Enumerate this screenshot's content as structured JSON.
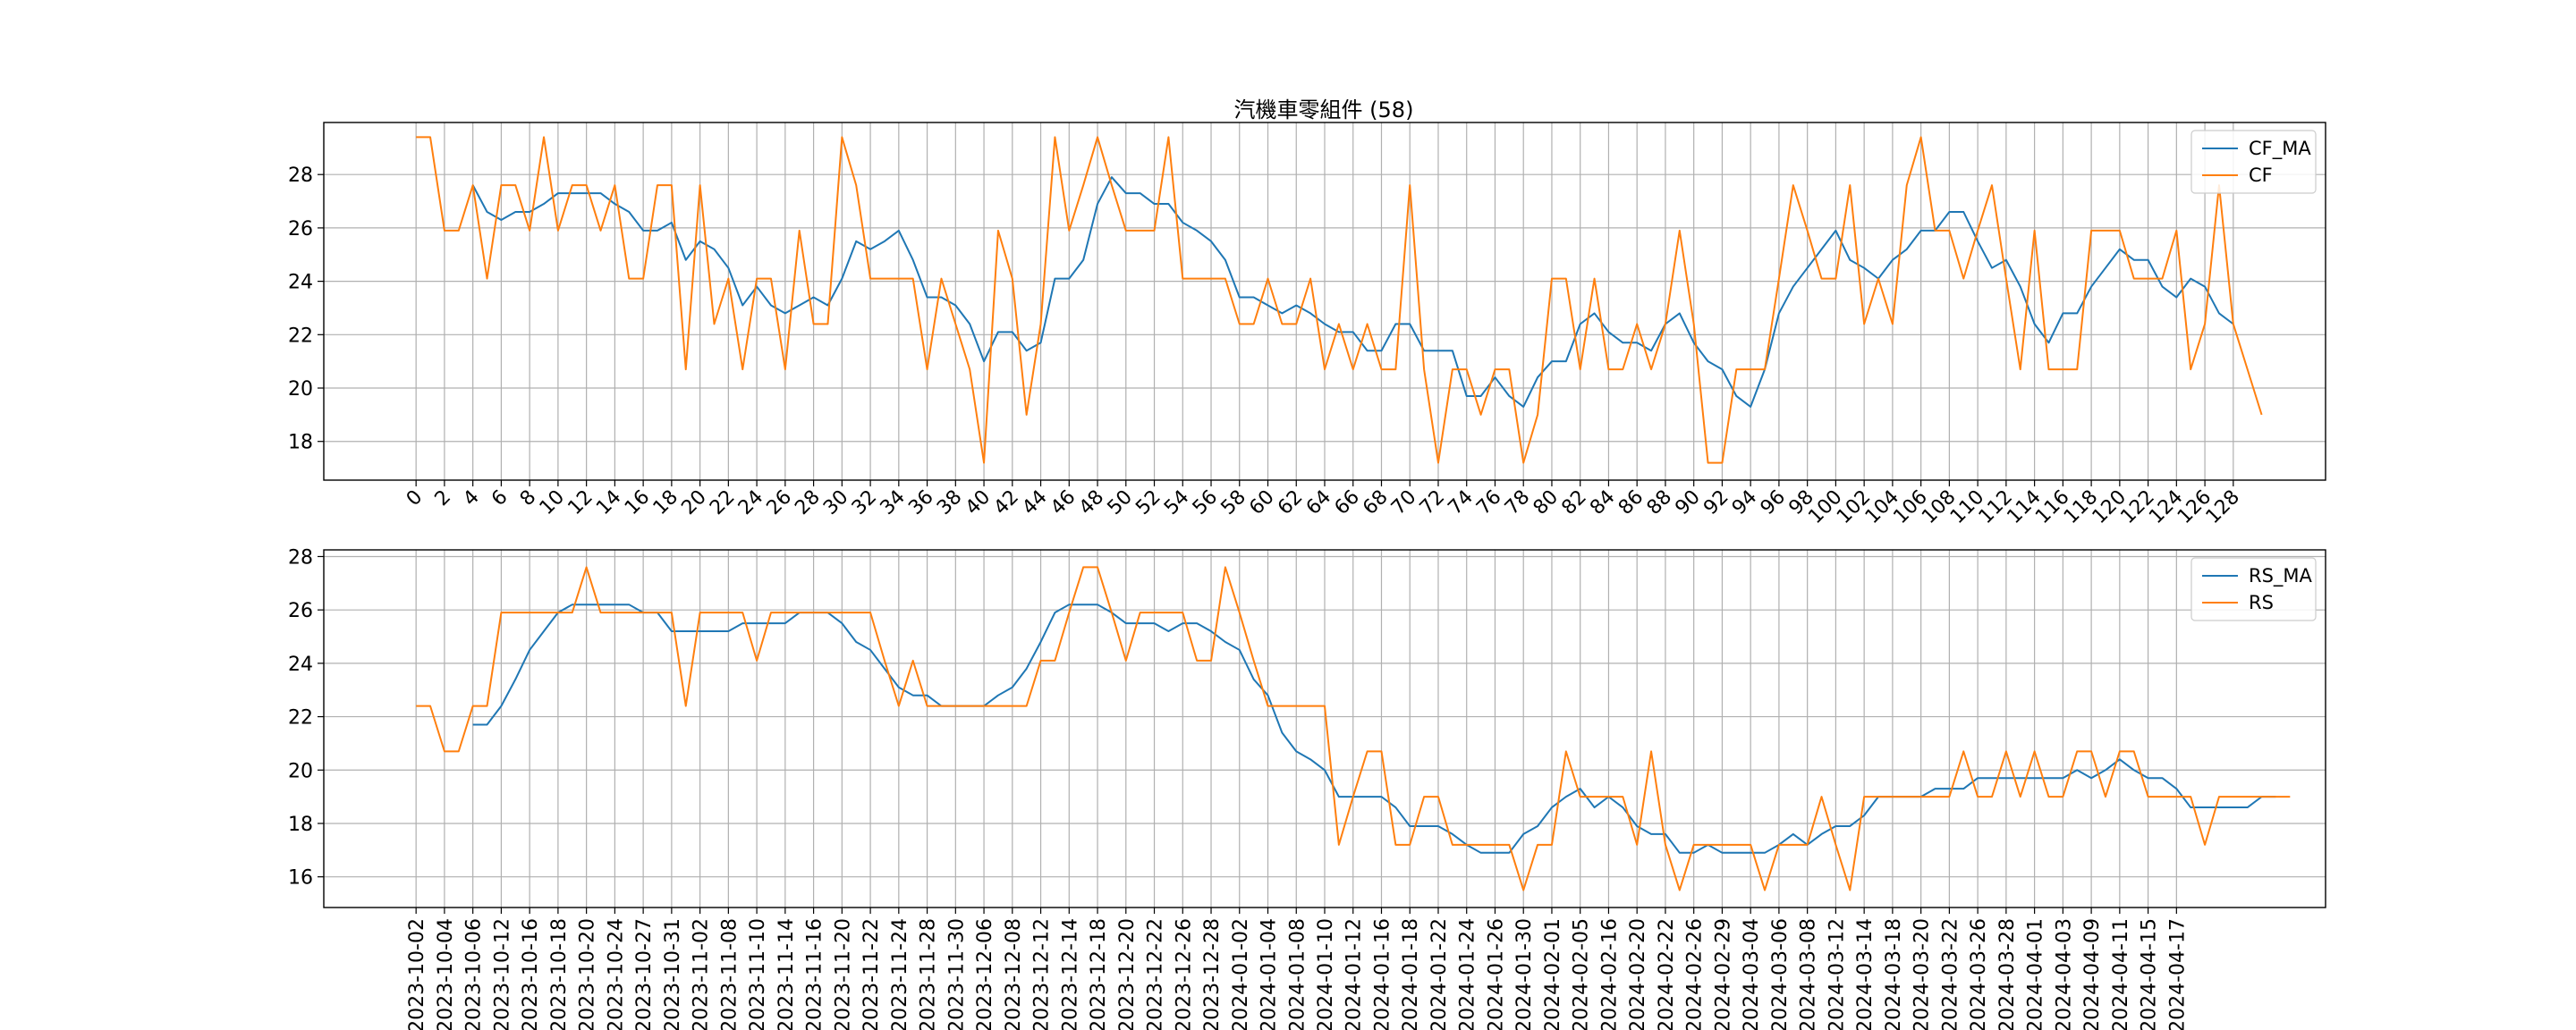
{
  "chart_data": [
    {
      "type": "line",
      "title": "汽機車零組件 (58)",
      "xlabel": "",
      "ylabel": "",
      "x_tick_labels": [
        "0",
        "2",
        "4",
        "6",
        "8",
        "10",
        "12",
        "14",
        "16",
        "18",
        "20",
        "22",
        "24",
        "26",
        "28",
        "30",
        "32",
        "34",
        "36",
        "38",
        "40",
        "42",
        "44",
        "46",
        "48",
        "50",
        "52",
        "54",
        "56",
        "58",
        "60",
        "62",
        "64",
        "66",
        "68",
        "70",
        "72",
        "74",
        "76",
        "78",
        "80",
        "82",
        "84",
        "86",
        "88",
        "90",
        "92",
        "94",
        "96",
        "98",
        "100",
        "102",
        "104",
        "106",
        "108",
        "110",
        "112",
        "114",
        "116",
        "118",
        "120",
        "122",
        "124",
        "126",
        "128"
      ],
      "y_ticks": [
        "18",
        "20",
        "22",
        "24",
        "26",
        "28"
      ],
      "xlim": [
        -6.5,
        134.5
      ],
      "ylim": [
        16.55,
        29.95
      ],
      "grid": true,
      "legend_position": "top-right",
      "series": [
        {
          "name": "CF_MA",
          "color": "#1f77b4",
          "x_start": 4,
          "values": [
            27.6,
            26.6,
            26.3,
            26.6,
            26.6,
            26.9,
            27.3,
            27.3,
            27.3,
            27.3,
            26.9,
            26.6,
            25.9,
            25.9,
            26.2,
            24.8,
            25.5,
            25.2,
            24.5,
            23.1,
            23.8,
            23.1,
            22.8,
            23.1,
            23.4,
            23.1,
            24.1,
            25.5,
            25.2,
            25.5,
            25.9,
            24.8,
            23.4,
            23.4,
            23.1,
            22.4,
            21.0,
            22.1,
            22.1,
            21.4,
            21.7,
            24.1,
            24.1,
            24.8,
            26.9,
            27.9,
            27.3,
            27.3,
            26.9,
            26.9,
            26.2,
            25.9,
            25.5,
            24.8,
            23.4,
            23.4,
            23.1,
            22.8,
            23.1,
            22.8,
            22.4,
            22.1,
            22.1,
            21.4,
            21.4,
            22.4,
            22.4,
            21.4,
            21.4,
            21.4,
            19.7,
            19.7,
            20.4,
            19.7,
            19.3,
            20.4,
            21.0,
            21.0,
            22.4,
            22.8,
            22.1,
            21.7,
            21.7,
            21.4,
            22.4,
            22.8,
            21.7,
            21.0,
            20.7,
            19.7,
            19.3,
            20.7,
            22.8,
            23.8,
            24.5,
            25.2,
            25.9,
            24.8,
            24.5,
            24.1,
            24.8,
            25.2,
            25.9,
            25.9,
            26.6,
            26.6,
            25.5,
            24.5,
            24.8,
            23.8,
            22.4,
            21.7,
            22.8,
            22.8,
            23.8,
            24.5,
            25.2,
            24.8,
            24.8,
            23.8,
            23.4,
            24.1,
            23.8,
            22.8,
            22.4
          ]
        },
        {
          "name": "CF",
          "color": "#ff7f0e",
          "x_start": 0,
          "values": [
            29.4,
            29.4,
            25.9,
            25.9,
            27.6,
            24.1,
            27.6,
            27.6,
            25.9,
            29.4,
            25.9,
            27.6,
            27.6,
            25.9,
            27.6,
            24.1,
            24.1,
            27.6,
            27.6,
            20.7,
            27.6,
            22.4,
            24.1,
            20.7,
            24.1,
            24.1,
            20.7,
            25.9,
            22.4,
            22.4,
            29.4,
            27.6,
            24.1,
            24.1,
            24.1,
            24.1,
            20.7,
            24.1,
            22.4,
            20.7,
            17.2,
            25.9,
            24.1,
            19.0,
            22.4,
            29.4,
            25.9,
            27.6,
            29.4,
            27.6,
            25.9,
            25.9,
            25.9,
            29.4,
            24.1,
            24.1,
            24.1,
            24.1,
            22.4,
            22.4,
            24.1,
            22.4,
            22.4,
            24.1,
            20.7,
            22.4,
            20.7,
            22.4,
            20.7,
            20.7,
            27.6,
            20.7,
            17.2,
            20.7,
            20.7,
            19.0,
            20.7,
            20.7,
            17.2,
            19.0,
            24.1,
            24.1,
            20.7,
            24.1,
            20.7,
            20.7,
            22.4,
            20.7,
            22.4,
            25.9,
            22.4,
            17.2,
            17.2,
            20.7,
            20.7,
            20.7,
            24.1,
            27.6,
            25.9,
            24.1,
            24.1,
            27.6,
            22.4,
            24.1,
            22.4,
            27.6,
            29.4,
            25.9,
            25.9,
            24.1,
            25.9,
            27.6,
            24.1,
            20.7,
            25.9,
            20.7,
            20.7,
            20.7,
            25.9,
            25.9,
            25.9,
            24.1,
            24.1,
            24.1,
            25.9,
            20.7,
            22.4,
            27.6,
            22.4,
            20.7,
            19.0
          ]
        }
      ]
    },
    {
      "type": "line",
      "title": "",
      "xlabel": "",
      "ylabel": "",
      "x_tick_labels": [
        "2023-10-02",
        "2023-10-04",
        "2023-10-06",
        "2023-10-12",
        "2023-10-16",
        "2023-10-18",
        "2023-10-20",
        "2023-10-24",
        "2023-10-27",
        "2023-10-31",
        "2023-11-02",
        "2023-11-08",
        "2023-11-10",
        "2023-11-14",
        "2023-11-16",
        "2023-11-20",
        "2023-11-22",
        "2023-11-24",
        "2023-11-28",
        "2023-11-30",
        "2023-12-06",
        "2023-12-08",
        "2023-12-12",
        "2023-12-14",
        "2023-12-18",
        "2023-12-20",
        "2023-12-22",
        "2023-12-26",
        "2023-12-28",
        "2024-01-02",
        "2024-01-04",
        "2024-01-08",
        "2024-01-10",
        "2024-01-12",
        "2024-01-16",
        "2024-01-18",
        "2024-01-22",
        "2024-01-24",
        "2024-01-26",
        "2024-01-30",
        "2024-02-01",
        "2024-02-05",
        "2024-02-16",
        "2024-02-20",
        "2024-02-22",
        "2024-02-26",
        "2024-02-29",
        "2024-03-04",
        "2024-03-06",
        "2024-03-08",
        "2024-03-12",
        "2024-03-14",
        "2024-03-18",
        "2024-03-20",
        "2024-03-22",
        "2024-03-26",
        "2024-03-28",
        "2024-04-01",
        "2024-04-03",
        "2024-04-09",
        "2024-04-11",
        "2024-04-15",
        "2024-04-17"
      ],
      "y_ticks": [
        "16",
        "18",
        "20",
        "22",
        "24",
        "26",
        "28"
      ],
      "xlim": [
        -6.5,
        134.5
      ],
      "ylim": [
        14.85,
        28.25
      ],
      "grid": true,
      "legend_position": "top-right",
      "series": [
        {
          "name": "RS_MA",
          "color": "#1f77b4",
          "x_start": 4,
          "values": [
            21.7,
            21.7,
            22.4,
            23.4,
            24.5,
            25.2,
            25.9,
            26.2,
            26.2,
            26.2,
            26.2,
            26.2,
            25.9,
            25.9,
            25.2,
            25.2,
            25.2,
            25.2,
            25.2,
            25.5,
            25.5,
            25.5,
            25.5,
            25.9,
            25.9,
            25.9,
            25.5,
            24.8,
            24.5,
            23.8,
            23.1,
            22.8,
            22.8,
            22.4,
            22.4,
            22.4,
            22.4,
            22.8,
            23.1,
            23.8,
            24.8,
            25.9,
            26.2,
            26.2,
            26.2,
            25.9,
            25.5,
            25.5,
            25.5,
            25.2,
            25.5,
            25.5,
            25.2,
            24.8,
            24.5,
            23.4,
            22.8,
            21.4,
            20.7,
            20.4,
            20.0,
            19.0,
            19.0,
            19.0,
            19.0,
            18.6,
            17.9,
            17.9,
            17.9,
            17.6,
            17.2,
            16.9,
            16.9,
            16.9,
            17.6,
            17.9,
            18.6,
            19.0,
            19.3,
            18.6,
            19.0,
            18.6,
            17.9,
            17.6,
            17.6,
            16.9,
            16.9,
            17.2,
            16.9,
            16.9,
            16.9,
            16.9,
            17.2,
            17.6,
            17.2,
            17.6,
            17.9,
            17.9,
            18.3,
            19.0,
            19.0,
            19.0,
            19.0,
            19.3,
            19.3,
            19.3,
            19.7,
            19.7,
            19.7,
            19.7,
            19.7,
            19.7,
            19.7,
            20.0,
            19.7,
            20.0,
            20.4,
            20.0,
            19.7,
            19.7,
            19.3,
            18.6,
            18.6,
            18.6,
            18.6,
            18.6,
            19.0,
            19.0
          ]
        },
        {
          "name": "RS",
          "color": "#ff7f0e",
          "x_start": 0,
          "values": [
            22.4,
            22.4,
            20.7,
            20.7,
            22.4,
            22.4,
            25.9,
            25.9,
            25.9,
            25.9,
            25.9,
            25.9,
            27.6,
            25.9,
            25.9,
            25.9,
            25.9,
            25.9,
            25.9,
            22.4,
            25.9,
            25.9,
            25.9,
            25.9,
            24.1,
            25.9,
            25.9,
            25.9,
            25.9,
            25.9,
            25.9,
            25.9,
            25.9,
            24.1,
            22.4,
            24.1,
            22.4,
            22.4,
            22.4,
            22.4,
            22.4,
            22.4,
            22.4,
            22.4,
            24.1,
            24.1,
            25.9,
            27.6,
            27.6,
            25.9,
            24.1,
            25.9,
            25.9,
            25.9,
            25.9,
            24.1,
            24.1,
            27.6,
            25.9,
            24.1,
            22.4,
            22.4,
            22.4,
            22.4,
            22.4,
            17.2,
            19.0,
            20.7,
            20.7,
            17.2,
            17.2,
            19.0,
            19.0,
            17.2,
            17.2,
            17.2,
            17.2,
            17.2,
            15.5,
            17.2,
            17.2,
            20.7,
            19.0,
            19.0,
            19.0,
            19.0,
            17.2,
            20.7,
            17.2,
            15.5,
            17.2,
            17.2,
            17.2,
            17.2,
            17.2,
            15.5,
            17.2,
            17.2,
            17.2,
            19.0,
            17.2,
            15.5,
            19.0,
            19.0,
            19.0,
            19.0,
            19.0,
            19.0,
            19.0,
            20.7,
            19.0,
            19.0,
            20.7,
            19.0,
            20.7,
            19.0,
            19.0,
            20.7,
            20.7,
            19.0,
            20.7,
            20.7,
            19.0,
            19.0,
            19.0,
            19.0,
            17.2,
            19.0,
            19.0,
            19.0,
            19.0,
            19.0,
            19.0
          ]
        }
      ]
    }
  ]
}
